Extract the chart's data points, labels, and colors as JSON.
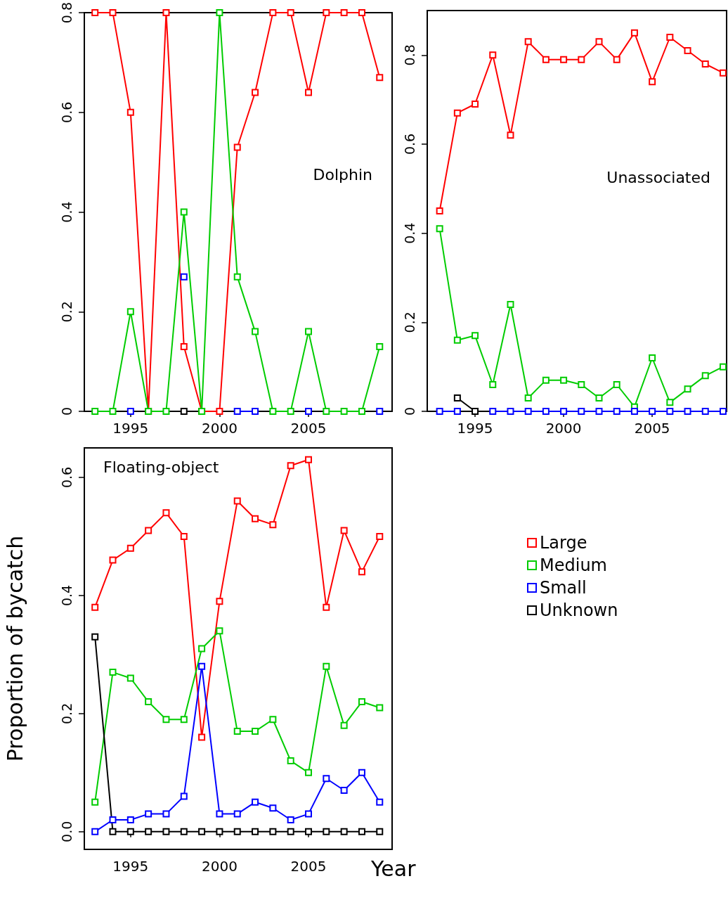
{
  "chart_data": [
    {
      "type": "line",
      "title": "Dolphin",
      "x": [
        1993,
        1994,
        1995,
        1996,
        1997,
        1998,
        1999,
        2000,
        2001,
        2002,
        2003,
        2004,
        2005,
        2006,
        2007,
        2008,
        2009
      ],
      "xlim": [
        1992.4,
        2009.7
      ],
      "xticks": [
        1995,
        2000,
        2005
      ],
      "ylim": [
        0,
        0.8
      ],
      "yticks": [
        0,
        {
          "value": 0.2,
          "label": "0.2"
        },
        {
          "value": 0.4,
          "label": "0.4"
        },
        {
          "value": 0.6,
          "label": "0.6"
        },
        {
          "value": 0.8,
          "label": "0.8"
        }
      ],
      "marker": "square",
      "line_style": "solid",
      "grid": false,
      "legend": false,
      "series": [
        {
          "color": "#ff0000",
          "values": [
            0.8,
            0.8,
            0.6,
            0,
            0.8,
            0.13,
            0,
            0,
            0.53,
            0.64,
            0.8,
            0.8,
            0.64,
            0.8,
            0.8,
            0.8,
            0.67
          ]
        },
        {
          "color": "#00cc00",
          "values": [
            0,
            0,
            0.2,
            0,
            0,
            0.4,
            0,
            0.8,
            0.27,
            0.16,
            0,
            0,
            0.16,
            0,
            0,
            0,
            0.13
          ]
        },
        {
          "color": "#0000ff",
          "values": [
            null,
            null,
            0,
            null,
            null,
            0.27,
            null,
            null,
            0,
            0,
            null,
            null,
            0,
            null,
            null,
            null,
            0
          ]
        },
        {
          "color": "#000000",
          "values": [
            null,
            null,
            null,
            null,
            null,
            0,
            null,
            null,
            null,
            null,
            null,
            null,
            null,
            null,
            null,
            null,
            null
          ]
        }
      ]
    },
    {
      "type": "line",
      "title": "Unassociated",
      "x": [
        1993,
        1994,
        1995,
        1996,
        1997,
        1998,
        1999,
        2000,
        2001,
        2002,
        2003,
        2004,
        2005,
        2006,
        2007,
        2008,
        2009
      ],
      "xlim": [
        1992.3,
        2009.2
      ],
      "xticks": [
        1995,
        2000,
        2005
      ],
      "ylim": [
        0,
        0.9
      ],
      "yticks": [
        0,
        {
          "value": 0.2,
          "label": "0.2"
        },
        {
          "value": 0.4,
          "label": "0.4"
        },
        {
          "value": 0.6,
          "label": "0.6"
        },
        {
          "value": 0.8,
          "label": "0.8"
        }
      ],
      "marker": "square",
      "line_style": "solid",
      "grid": false,
      "legend": false,
      "series": [
        {
          "color": "#ff0000",
          "values": [
            0.45,
            0.67,
            0.69,
            0.8,
            0.62,
            0.83,
            0.79,
            0.79,
            0.79,
            0.83,
            0.79,
            0.85,
            0.74,
            0.84,
            0.81,
            0.78,
            0.76
          ]
        },
        {
          "color": "#00cc00",
          "values": [
            0.41,
            0.16,
            0.17,
            0.06,
            0.24,
            0.03,
            0.07,
            0.07,
            0.06,
            0.03,
            0.06,
            0.01,
            0.12,
            0.02,
            0.05,
            0.08,
            0.1
          ]
        },
        {
          "color": "#0000ff",
          "values": [
            0,
            0,
            null,
            0,
            0,
            0,
            0,
            0,
            0,
            0,
            0,
            0,
            0,
            0,
            0,
            0,
            0
          ]
        },
        {
          "color": "#000000",
          "values": [
            null,
            0.03,
            0,
            null,
            null,
            null,
            null,
            null,
            null,
            null,
            null,
            null,
            null,
            null,
            null,
            null,
            null
          ]
        }
      ]
    },
    {
      "type": "line",
      "title": "Floating-object",
      "xlabel": "Year",
      "ylabel": "Proportion of bycatch",
      "x": [
        1993,
        1994,
        1995,
        1996,
        1997,
        1998,
        1999,
        2000,
        2001,
        2002,
        2003,
        2004,
        2005,
        2006,
        2007,
        2008,
        2009
      ],
      "xlim": [
        1992.4,
        2009.7
      ],
      "xticks": [
        1995,
        2000,
        2005
      ],
      "ylim": [
        -0.03,
        0.65
      ],
      "yticks": [
        {
          "value": 0,
          "label": "0.0"
        },
        {
          "value": 0.2,
          "label": "0.2"
        },
        {
          "value": 0.4,
          "label": "0.4"
        },
        {
          "value": 0.6,
          "label": "0.6"
        }
      ],
      "marker": "square",
      "line_style": "solid",
      "grid": false,
      "legend": "right",
      "series": [
        {
          "name": "Large",
          "color": "#ff0000",
          "values": [
            0.38,
            0.46,
            0.48,
            0.51,
            0.54,
            0.5,
            0.16,
            0.39,
            0.56,
            0.53,
            0.52,
            0.62,
            0.63,
            0.38,
            0.51,
            0.44,
            0.5
          ]
        },
        {
          "name": "Medium",
          "color": "#00cc00",
          "values": [
            0.05,
            0.27,
            0.26,
            0.22,
            0.19,
            0.19,
            0.31,
            0.34,
            0.17,
            0.17,
            0.19,
            0.12,
            0.1,
            0.28,
            0.18,
            0.22,
            0.21
          ]
        },
        {
          "name": "Small",
          "color": "#0000ff",
          "values": [
            0,
            0.02,
            0.02,
            0.03,
            0.03,
            0.06,
            0.28,
            0.03,
            0.03,
            0.05,
            0.04,
            0.02,
            0.03,
            0.09,
            0.07,
            0.1,
            0.05
          ]
        },
        {
          "name": "Unknown",
          "color": "#000000",
          "values": [
            0.33,
            0,
            0,
            0,
            0,
            0,
            0,
            0,
            0,
            0,
            0,
            0,
            0,
            0,
            0,
            0,
            0
          ]
        }
      ]
    }
  ]
}
